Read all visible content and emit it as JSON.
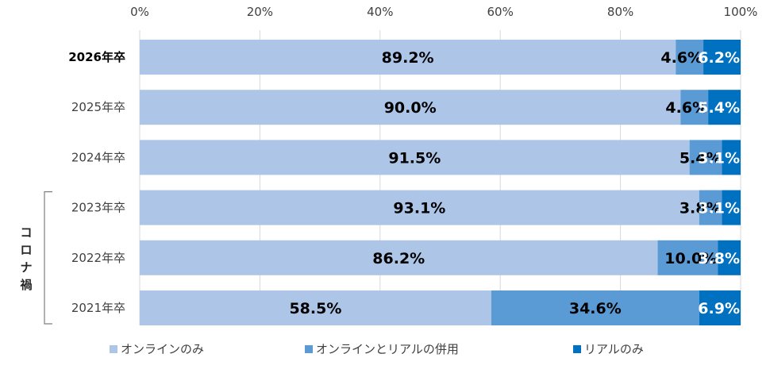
{
  "chart_data": {
    "type": "bar",
    "orientation": "horizontal",
    "stacked": true,
    "xlim": [
      0,
      100
    ],
    "ticks": [
      "0%",
      "20%",
      "40%",
      "60%",
      "80%",
      "100%"
    ],
    "tick_values": [
      0,
      20,
      40,
      60,
      80,
      100
    ],
    "grid": true,
    "legend_position": "bottom",
    "categories": [
      "2026年卒",
      "2025年卒",
      "2024年卒",
      "2023年卒",
      "2022年卒",
      "2021年卒"
    ],
    "highlighted_category": "2026年卒",
    "series": [
      {
        "name": "オンラインのみ",
        "color": "#adc5e7",
        "label_color": "#000000",
        "values": [
          89.2,
          90.0,
          91.5,
          93.1,
          86.2,
          58.5
        ],
        "labels": [
          "89.2%",
          "90.0%",
          "91.5%",
          "93.1%",
          "86.2%",
          "58.5%"
        ]
      },
      {
        "name": "オンラインとリアルの併用",
        "color": "#5b9bd5",
        "label_color": "#000000",
        "values": [
          4.6,
          4.6,
          5.4,
          3.8,
          10.0,
          34.6
        ],
        "labels": [
          "4.6%",
          "4.6%",
          "5.4%",
          "3.8%",
          "10.0%",
          "34.6%"
        ]
      },
      {
        "name": "リアルのみ",
        "color": "#0070c0",
        "label_color": "#ffffff",
        "values": [
          6.2,
          5.4,
          3.1,
          3.1,
          3.8,
          6.9
        ],
        "labels": [
          "6.2%",
          "5.4%",
          "3.1%",
          "3.1%",
          "3.8%",
          "6.9%"
        ]
      }
    ],
    "bracket_label": "コロナ禍",
    "bracket_categories": [
      "2023年卒",
      "2022年卒",
      "2021年卒"
    ]
  }
}
